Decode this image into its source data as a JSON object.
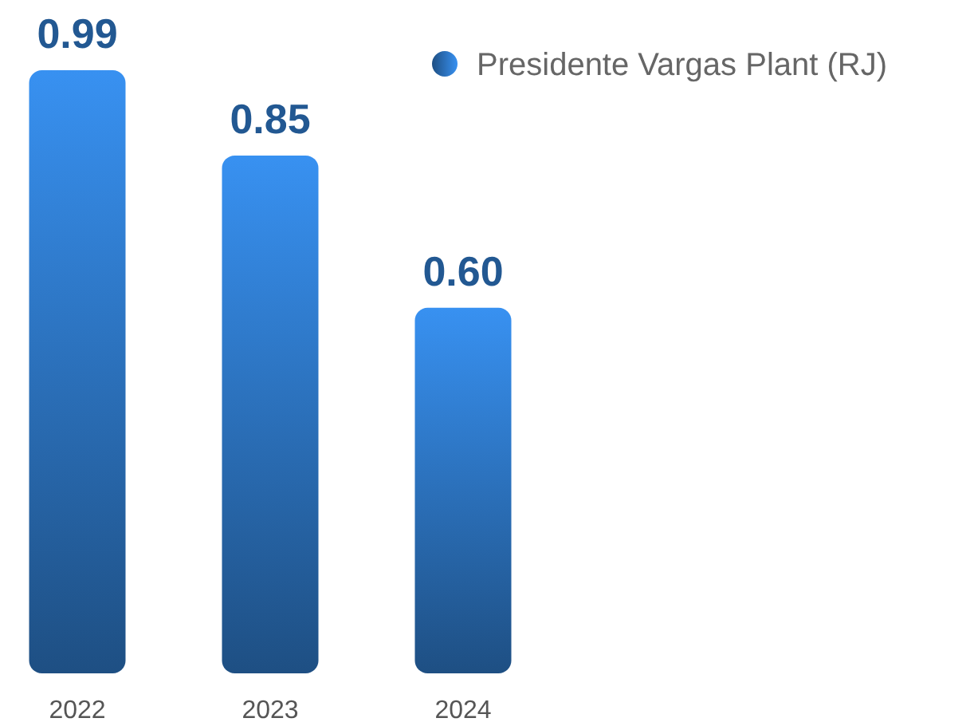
{
  "chart_data": {
    "type": "bar",
    "categories": [
      "2022",
      "2023",
      "2024"
    ],
    "series": [
      {
        "name": "Presidente Vargas Plant (RJ)",
        "color": "#2a6db5",
        "values": [
          0.99,
          0.85,
          0.6
        ],
        "value_labels": [
          "0.99",
          "0.85",
          "0.60"
        ]
      }
    ],
    "legend": "top right"
  }
}
